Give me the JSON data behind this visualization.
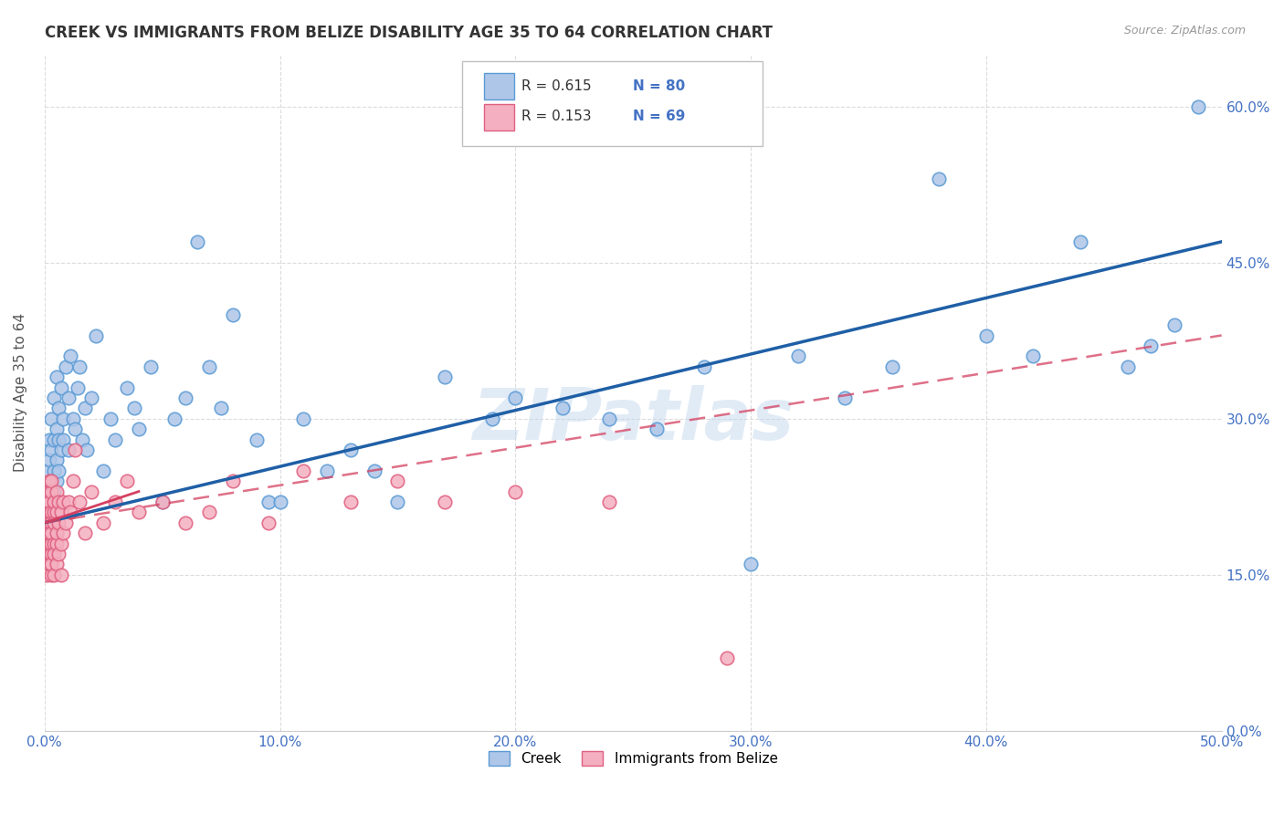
{
  "title": "CREEK VS IMMIGRANTS FROM BELIZE DISABILITY AGE 35 TO 64 CORRELATION CHART",
  "source": "Source: ZipAtlas.com",
  "ylabel": "Disability Age 35 to 64",
  "xmin": 0.0,
  "xmax": 0.5,
  "ymin": 0.0,
  "ymax": 0.65,
  "x_ticks": [
    0.0,
    0.1,
    0.2,
    0.3,
    0.4,
    0.5
  ],
  "x_tick_labels": [
    "0.0%",
    "10.0%",
    "20.0%",
    "30.0%",
    "40.0%",
    "50.0%"
  ],
  "y_ticks": [
    0.0,
    0.15,
    0.3,
    0.45,
    0.6
  ],
  "y_tick_labels": [
    "0.0%",
    "15.0%",
    "30.0%",
    "45.0%",
    "60.0%"
  ],
  "creek_color": "#aec6e8",
  "belize_color": "#f4afc0",
  "creek_edge": "#5b9bd5",
  "belize_edge": "#e06080",
  "trend_creek_color": "#1f5fa6",
  "trend_belize_color": "#d44060",
  "legend_R_creek": "R = 0.615",
  "legend_N_creek": "N = 80",
  "legend_R_belize": "R = 0.153",
  "legend_N_belize": "N = 69",
  "watermark": "ZIPatlas",
  "grid_color": "#d8d8d8",
  "background_color": "#ffffff",
  "tick_color": "#4472c4",
  "tick_fontsize": 11,
  "creek_x": [
    0.001,
    0.001,
    0.001,
    0.002,
    0.002,
    0.002,
    0.002,
    0.003,
    0.003,
    0.003,
    0.003,
    0.004,
    0.004,
    0.004,
    0.004,
    0.005,
    0.005,
    0.005,
    0.005,
    0.006,
    0.006,
    0.006,
    0.007,
    0.007,
    0.008,
    0.008,
    0.009,
    0.01,
    0.01,
    0.011,
    0.012,
    0.013,
    0.014,
    0.015,
    0.016,
    0.017,
    0.018,
    0.02,
    0.022,
    0.025,
    0.028,
    0.03,
    0.035,
    0.038,
    0.04,
    0.045,
    0.05,
    0.055,
    0.06,
    0.065,
    0.07,
    0.075,
    0.08,
    0.09,
    0.095,
    0.1,
    0.11,
    0.12,
    0.13,
    0.14,
    0.15,
    0.17,
    0.19,
    0.2,
    0.22,
    0.24,
    0.26,
    0.28,
    0.3,
    0.32,
    0.34,
    0.36,
    0.38,
    0.4,
    0.42,
    0.44,
    0.46,
    0.47,
    0.48,
    0.49
  ],
  "creek_y": [
    0.2,
    0.22,
    0.25,
    0.21,
    0.23,
    0.26,
    0.28,
    0.22,
    0.24,
    0.27,
    0.3,
    0.23,
    0.25,
    0.28,
    0.32,
    0.24,
    0.26,
    0.29,
    0.34,
    0.25,
    0.28,
    0.31,
    0.27,
    0.33,
    0.28,
    0.3,
    0.35,
    0.27,
    0.32,
    0.36,
    0.3,
    0.29,
    0.33,
    0.35,
    0.28,
    0.31,
    0.27,
    0.32,
    0.38,
    0.25,
    0.3,
    0.28,
    0.33,
    0.31,
    0.29,
    0.35,
    0.22,
    0.3,
    0.32,
    0.47,
    0.35,
    0.31,
    0.4,
    0.28,
    0.22,
    0.22,
    0.3,
    0.25,
    0.27,
    0.25,
    0.22,
    0.34,
    0.3,
    0.32,
    0.31,
    0.3,
    0.29,
    0.35,
    0.16,
    0.36,
    0.32,
    0.35,
    0.53,
    0.38,
    0.36,
    0.47,
    0.35,
    0.37,
    0.39,
    0.6
  ],
  "belize_x": [
    0.001,
    0.001,
    0.001,
    0.001,
    0.001,
    0.001,
    0.001,
    0.001,
    0.002,
    0.002,
    0.002,
    0.002,
    0.002,
    0.002,
    0.002,
    0.002,
    0.002,
    0.003,
    0.003,
    0.003,
    0.003,
    0.003,
    0.003,
    0.003,
    0.003,
    0.003,
    0.004,
    0.004,
    0.004,
    0.004,
    0.004,
    0.004,
    0.005,
    0.005,
    0.005,
    0.005,
    0.005,
    0.006,
    0.006,
    0.006,
    0.007,
    0.007,
    0.007,
    0.008,
    0.008,
    0.009,
    0.01,
    0.011,
    0.012,
    0.013,
    0.015,
    0.017,
    0.02,
    0.025,
    0.03,
    0.035,
    0.04,
    0.05,
    0.06,
    0.07,
    0.08,
    0.095,
    0.11,
    0.13,
    0.15,
    0.17,
    0.2,
    0.24,
    0.29
  ],
  "belize_y": [
    0.18,
    0.2,
    0.22,
    0.17,
    0.21,
    0.19,
    0.23,
    0.15,
    0.18,
    0.21,
    0.24,
    0.17,
    0.2,
    0.23,
    0.16,
    0.19,
    0.22,
    0.17,
    0.2,
    0.23,
    0.15,
    0.18,
    0.21,
    0.24,
    0.16,
    0.19,
    0.18,
    0.21,
    0.15,
    0.22,
    0.17,
    0.2,
    0.18,
    0.21,
    0.16,
    0.23,
    0.19,
    0.17,
    0.2,
    0.22,
    0.18,
    0.21,
    0.15,
    0.19,
    0.22,
    0.2,
    0.22,
    0.21,
    0.24,
    0.27,
    0.22,
    0.19,
    0.23,
    0.2,
    0.22,
    0.24,
    0.21,
    0.22,
    0.2,
    0.21,
    0.24,
    0.2,
    0.25,
    0.22,
    0.24,
    0.22,
    0.23,
    0.22,
    0.07
  ]
}
